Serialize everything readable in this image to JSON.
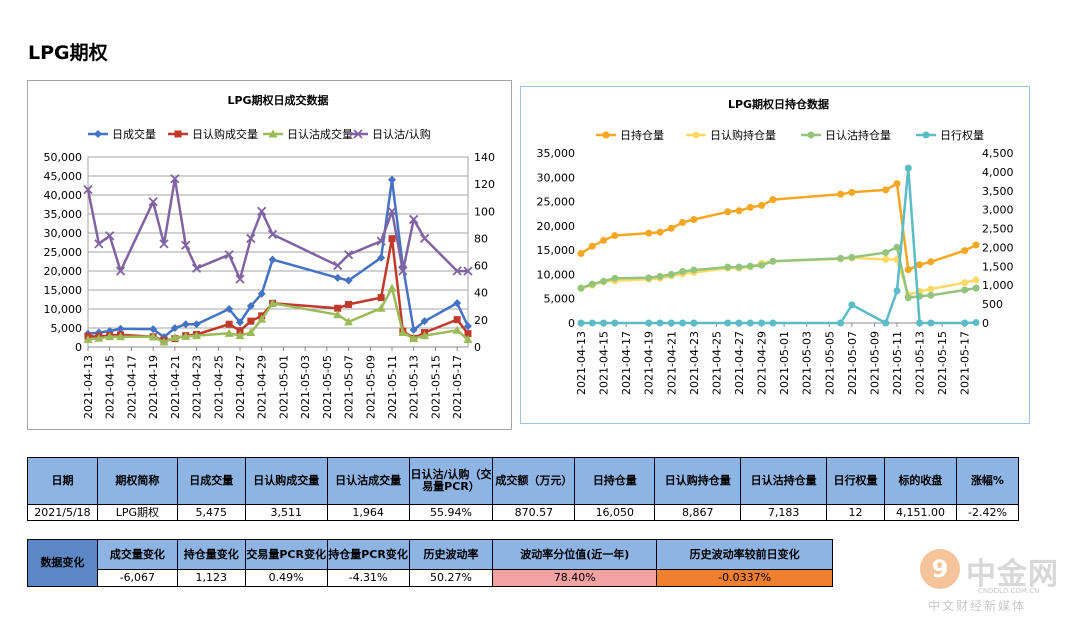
{
  "page_title": "LPG期权",
  "chart_data": [
    {
      "type": "line",
      "title": "LPG期权日成交数据",
      "categories": [
        "2021-04-13",
        "2021-04-14",
        "2021-04-15",
        "2021-04-16",
        "2021-04-19",
        "2021-04-20",
        "2021-04-21",
        "2021-04-22",
        "2021-04-23",
        "2021-04-26",
        "2021-04-27",
        "2021-04-28",
        "2021-04-29",
        "2021-04-30",
        "2021-05-06",
        "2021-05-07",
        "2021-05-10",
        "2021-05-11",
        "2021-05-12",
        "2021-05-13",
        "2021-05-14",
        "2021-05-17",
        "2021-05-18"
      ],
      "x_tick_labels": [
        "2021-04-13",
        "2021-04-15",
        "2021-04-17",
        "2021-04-19",
        "2021-04-21",
        "2021-04-23",
        "2021-04-25",
        "2021-04-27",
        "2021-04-29",
        "2021-05-01",
        "2021-05-03",
        "2021-05-05",
        "2021-05-07",
        "2021-05-09",
        "2021-05-11",
        "2021-05-13",
        "2021-05-15",
        "2021-05-17"
      ],
      "left_axis": {
        "min": 0,
        "max": 50000,
        "step": 5000,
        "tick_labels": [
          "0",
          "5,000",
          "10,000",
          "15,000",
          "20,000",
          "25,000",
          "30,000",
          "35,000",
          "40,000",
          "45,000",
          "50,000"
        ]
      },
      "right_axis": {
        "min": 0,
        "max": 140,
        "step": 20,
        "tick_labels": [
          "0",
          "20",
          "40",
          "60",
          "80",
          "100",
          "120",
          "140"
        ]
      },
      "legend_position": "top",
      "grid": true,
      "series": [
        {
          "name": "日成交量",
          "axis": "left",
          "color": "#4472c4",
          "marker": "diamond",
          "values": [
            3500,
            3800,
            4200,
            4800,
            4700,
            2600,
            5000,
            6000,
            6000,
            10000,
            6500,
            10800,
            14000,
            23000,
            18200,
            17500,
            23500,
            44000,
            21200,
            4500,
            6800,
            11542,
            5475
          ]
        },
        {
          "name": "日认购成交量",
          "axis": "left",
          "color": "#c0392b",
          "marker": "square",
          "values": [
            2800,
            2800,
            3000,
            3200,
            2700,
            1700,
            2200,
            3000,
            3300,
            6000,
            4300,
            6800,
            8200,
            11500,
            10200,
            11200,
            13000,
            28500,
            4200,
            2300,
            3800,
            7200,
            3511
          ]
        },
        {
          "name": "日认沽成交量",
          "axis": "left",
          "color": "#9bbb59",
          "marker": "triangle",
          "values": [
            2000,
            2300,
            2700,
            2700,
            2700,
            1300,
            2500,
            2800,
            3000,
            3600,
            3000,
            3800,
            7300,
            11500,
            8500,
            6600,
            10200,
            15500,
            3800,
            2200,
            3000,
            4400,
            1964
          ]
        },
        {
          "name": "日认沽/认购",
          "axis": "right",
          "color": "#8064a2",
          "marker": "x",
          "values": [
            116,
            76,
            82,
            56,
            107,
            76,
            124,
            75,
            58,
            68,
            50,
            80,
            100,
            83,
            60,
            68,
            78,
            100,
            56,
            94,
            80,
            56,
            55.94
          ]
        }
      ]
    },
    {
      "type": "line",
      "title": "LPG期权日持仓数据",
      "categories": [
        "2021-04-13",
        "2021-04-14",
        "2021-04-15",
        "2021-04-16",
        "2021-04-19",
        "2021-04-20",
        "2021-04-21",
        "2021-04-22",
        "2021-04-23",
        "2021-04-26",
        "2021-04-27",
        "2021-04-28",
        "2021-04-29",
        "2021-04-30",
        "2021-05-06",
        "2021-05-07",
        "2021-05-10",
        "2021-05-11",
        "2021-05-12",
        "2021-05-13",
        "2021-05-14",
        "2021-05-17",
        "2021-05-18"
      ],
      "x_tick_labels": [
        "2021-04-13",
        "2021-04-15",
        "2021-04-17",
        "2021-04-19",
        "2021-04-21",
        "2021-04-23",
        "2021-04-25",
        "2021-04-27",
        "2021-04-29",
        "2021-05-01",
        "2021-05-03",
        "2021-05-05",
        "2021-05-07",
        "2021-05-09",
        "2021-05-11",
        "2021-05-13",
        "2021-05-15",
        "2021-05-17"
      ],
      "left_axis": {
        "min": 0,
        "max": 35000,
        "step": 5000,
        "tick_labels": [
          "0",
          "5,000",
          "10,000",
          "15,000",
          "20,000",
          "25,000",
          "30,000",
          "35,000"
        ]
      },
      "right_axis": {
        "min": 0,
        "max": 4500,
        "step": 500,
        "tick_labels": [
          "0",
          "500",
          "1,000",
          "1,500",
          "2,000",
          "2,500",
          "3,000",
          "3,500",
          "4,000",
          "4,500"
        ]
      },
      "legend_position": "top",
      "grid": false,
      "series": [
        {
          "name": "日持仓量",
          "axis": "left",
          "color": "#f5a623",
          "marker": "circle",
          "values": [
            14300,
            15800,
            17000,
            18000,
            18500,
            18700,
            19500,
            20700,
            21300,
            22900,
            23100,
            23800,
            24200,
            25400,
            26500,
            26900,
            27400,
            28700,
            11000,
            12000,
            12600,
            14900,
            16050
          ]
        },
        {
          "name": "日认购持仓量",
          "axis": "left",
          "color": "#ffd966",
          "marker": "circle",
          "values": [
            7100,
            7800,
            8500,
            8700,
            9000,
            9200,
            9700,
            10100,
            10400,
            11300,
            11300,
            11600,
            12300,
            12700,
            13200,
            13400,
            13100,
            13100,
            5800,
            6500,
            7000,
            8300,
            8867
          ]
        },
        {
          "name": "日认沽持仓量",
          "axis": "left",
          "color": "#93c47d",
          "marker": "circle",
          "values": [
            7200,
            8000,
            8600,
            9200,
            9300,
            9600,
            10000,
            10600,
            10900,
            11500,
            11500,
            11700,
            11900,
            12700,
            13300,
            13500,
            14500,
            15600,
            5200,
            5500,
            5700,
            6800,
            7183
          ]
        },
        {
          "name": "日行权量",
          "axis": "right",
          "color": "#5bbcc6",
          "marker": "circle",
          "values": [
            0,
            0,
            0,
            0,
            0,
            0,
            0,
            0,
            0,
            0,
            0,
            0,
            0,
            0,
            0,
            480,
            0,
            850,
            4100,
            0,
            0,
            0,
            12
          ]
        }
      ]
    }
  ],
  "table1": {
    "headers": [
      "日期",
      "期权简称",
      "日成交量",
      "日认购成交量",
      "日认沽成交量",
      "日认沽/认购（交易量PCR）",
      "成交额（万元）",
      "日持仓量",
      "日认购持仓量",
      "日认沽持仓量",
      "日行权量",
      "标的收盘",
      "涨幅%"
    ],
    "row": [
      "2021/5/18",
      "LPG期权",
      "5,475",
      "3,511",
      "1,964",
      "55.94%",
      "870.57",
      "16,050",
      "8,867",
      "7,183",
      "12",
      "4,151.00",
      "-2.42%"
    ]
  },
  "table2": {
    "label": "数据变化",
    "headers": [
      "成交量变化",
      "持仓量变化",
      "交易量PCR变化",
      "持仓量PCR变化",
      "历史波动率",
      "波动率分位值(近一年)",
      "历史波动率较前日变化"
    ],
    "row": [
      "-6,067",
      "1,123",
      "0.49%",
      "-4.31%",
      "50.27%",
      "78.40%",
      "-0.0337%"
    ]
  },
  "watermark": {
    "mark": "9",
    "name": "中金网",
    "site": "CNGOLD.COM.CN",
    "tagline": "中文财经新媒体"
  }
}
